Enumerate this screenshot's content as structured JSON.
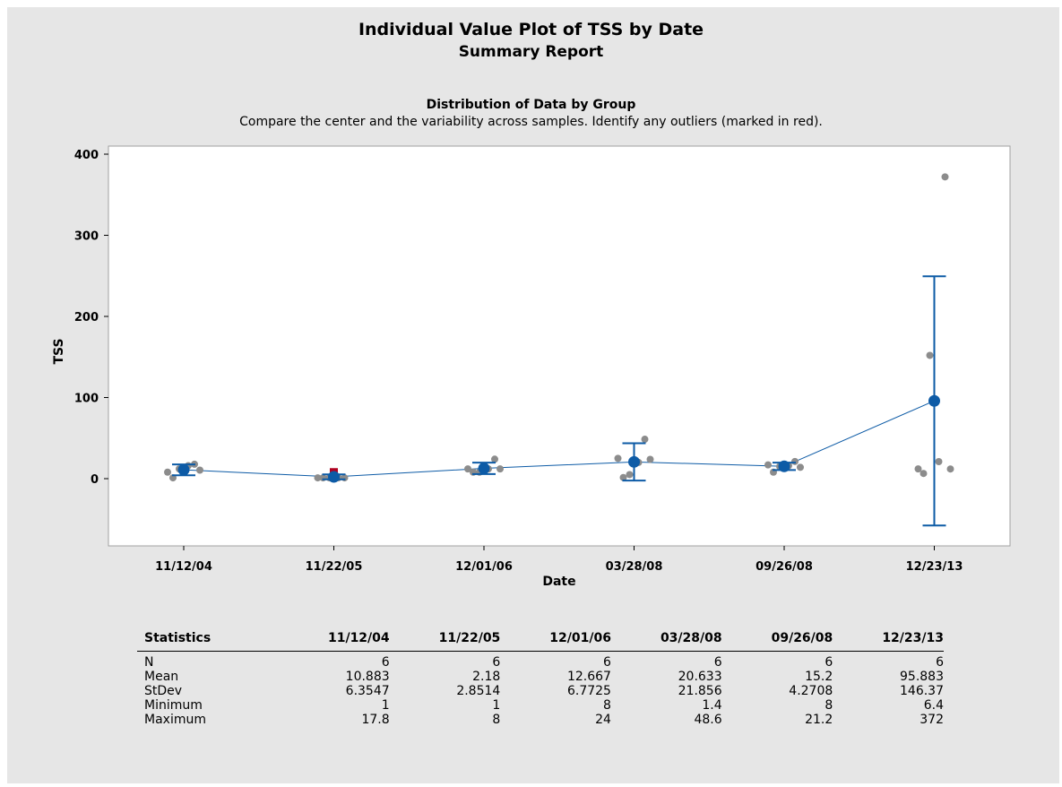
{
  "report": {
    "title": "Individual Value Plot of TSS by Date",
    "subtitle": "Summary Report",
    "section_title": "Distribution of Data by Group",
    "section_subtitle": "Compare the center and the variability across samples. Identify any outliers (marked in red)."
  },
  "chart_data": {
    "type": "scatter",
    "xlabel": "Date",
    "ylabel": "TSS",
    "categories": [
      "11/12/04",
      "11/22/05",
      "12/01/06",
      "03/28/08",
      "09/26/08",
      "12/23/13"
    ],
    "ylim": [
      -80,
      410
    ],
    "yticks": [
      0,
      100,
      200,
      300,
      400
    ],
    "grid": false,
    "colors": {
      "points": "#8c8c8c",
      "outlier": "#b00020",
      "mean": "#0d5ba6",
      "line": "#0d5ba6"
    },
    "points": [
      [
        1,
        17.8,
        12,
        16,
        8,
        10.5
      ],
      [
        1,
        1,
        1,
        1,
        1
      ],
      [
        8,
        24,
        8,
        12,
        12,
        12
      ],
      [
        1.4,
        48.6,
        5,
        20,
        25,
        23.8
      ],
      [
        8,
        21.2,
        15,
        16,
        17,
        14
      ],
      [
        6.4,
        372,
        152,
        21,
        12,
        11.9
      ]
    ],
    "outliers": [
      {
        "group": 1,
        "value": 8
      }
    ],
    "means": [
      10.883,
      2.18,
      12.667,
      20.633,
      15.2,
      95.883
    ],
    "intervals": [
      [
        4.2,
        17.5
      ],
      [
        -0.8,
        5.2
      ],
      [
        5.6,
        19.8
      ],
      [
        -2.3,
        43.6
      ],
      [
        10.7,
        19.7
      ],
      [
        -57.7,
        249.5
      ]
    ]
  },
  "stats_table": {
    "header": [
      "Statistics",
      "11/12/04",
      "11/22/05",
      "12/01/06",
      "03/28/08",
      "09/26/08",
      "12/23/13"
    ],
    "rows": [
      [
        "N",
        "6",
        "6",
        "6",
        "6",
        "6",
        "6"
      ],
      [
        "Mean",
        "10.883",
        "2.18",
        "12.667",
        "20.633",
        "15.2",
        "95.883"
      ],
      [
        "StDev",
        "6.3547",
        "2.8514",
        "6.7725",
        "21.856",
        "4.2708",
        "146.37"
      ],
      [
        "Minimum",
        "1",
        "1",
        "8",
        "1.4",
        "8",
        "6.4"
      ],
      [
        "Maximum",
        "17.8",
        "8",
        "24",
        "48.6",
        "21.2",
        "372"
      ]
    ]
  }
}
